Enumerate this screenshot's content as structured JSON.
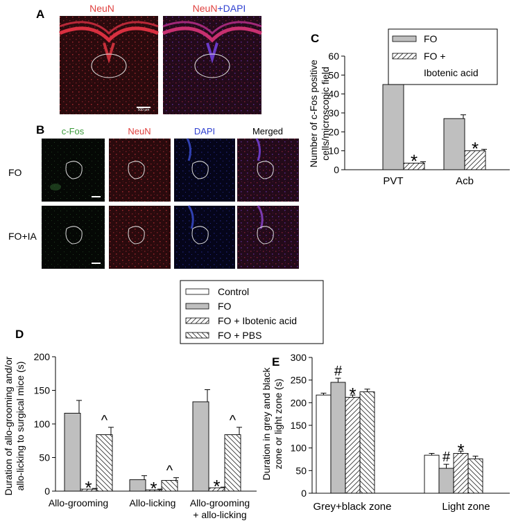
{
  "panel_a": {
    "letter": "A",
    "label_neun": "NeuN",
    "label_neun2": "NeuN",
    "label_plus": "+",
    "label_dapi": "DAPI",
    "scalebar_text": "500 μm"
  },
  "panel_b": {
    "letter": "B",
    "columns": [
      "c-Fos",
      "NeuN",
      "DAPI",
      "Merged"
    ],
    "rows": [
      "FO",
      "FO+IA"
    ]
  },
  "panel_c": {
    "letter": "C",
    "ylabel": [
      "Number of c-Fos positive",
      "cells/microscopic field"
    ],
    "legend": [
      "FO",
      "FO +",
      "Ibotenic acid"
    ],
    "star": "*"
  },
  "panel_d": {
    "letter": "D",
    "ylabel": [
      "Duration of allo-grooming and/or",
      "allo-licking to surgical mice (s)"
    ],
    "legend": [
      "Control",
      "FO",
      "FO + Ibotenic acid",
      "FO + PBS"
    ],
    "star": "*",
    "caret": "^",
    "category_lines": [
      [
        "Allo-grooming"
      ],
      [
        "Allo-licking"
      ],
      [
        "Allo-grooming",
        "+ allo-licking"
      ]
    ]
  },
  "panel_e": {
    "letter": "E",
    "ylabel": [
      "Duration in grey and black",
      "zone or light zone (s)"
    ],
    "star": "*",
    "hash": "#",
    "categories": [
      "Grey+black zone",
      "Light zone"
    ]
  },
  "colors": {
    "red": "#e0403e",
    "blue": "#2e3fd0",
    "green": "#3a9a3a",
    "grey_bar": "#bfbfbf"
  },
  "chart_data": [
    {
      "panel": "C",
      "type": "bar",
      "categories": [
        "PVT",
        "Acb"
      ],
      "series": [
        {
          "name": "FO",
          "values": [
            45,
            27
          ],
          "errors": [
            3,
            2
          ],
          "fill": "grey"
        },
        {
          "name": "FO + Ibotenic acid",
          "values": [
            3.5,
            10
          ],
          "errors": [
            0.7,
            0.8
          ],
          "fill": "hatch"
        }
      ],
      "ylim": [
        0,
        60
      ],
      "yticks": [
        0,
        10,
        20,
        30,
        40,
        50,
        60
      ],
      "significance": [
        {
          "series": 1,
          "category": 0,
          "mark": "*"
        },
        {
          "series": 1,
          "category": 1,
          "mark": "*"
        }
      ],
      "legend_position": "top-right"
    },
    {
      "panel": "D",
      "type": "bar",
      "categories": [
        "Allo-grooming",
        "Allo-licking",
        "Allo-grooming + allo-licking"
      ],
      "series": [
        {
          "name": "Control",
          "values": [
            0,
            0,
            0
          ],
          "errors": [
            0,
            0,
            0
          ],
          "fill": "white"
        },
        {
          "name": "FO",
          "values": [
            116,
            17,
            133
          ],
          "errors": [
            19,
            6,
            18
          ],
          "fill": "grey"
        },
        {
          "name": "FO + Ibotenic acid",
          "values": [
            3,
            2,
            5
          ],
          "errors": [
            1,
            1,
            1
          ],
          "fill": "hatch"
        },
        {
          "name": "FO + PBS",
          "values": [
            84,
            16,
            84
          ],
          "errors": [
            11,
            4,
            11
          ],
          "fill": "backhatch"
        }
      ],
      "ylim": [
        0,
        200
      ],
      "yticks": [
        0,
        50,
        100,
        150,
        200
      ],
      "significance": [
        {
          "series": 2,
          "category": 0,
          "mark": "*"
        },
        {
          "series": 3,
          "category": 0,
          "mark": "^"
        },
        {
          "series": 2,
          "category": 1,
          "mark": "*"
        },
        {
          "series": 3,
          "category": 1,
          "mark": "^"
        },
        {
          "series": 2,
          "category": 2,
          "mark": "*"
        },
        {
          "series": 3,
          "category": 2,
          "mark": "^"
        }
      ],
      "legend_position": "top-center"
    },
    {
      "panel": "E",
      "type": "bar",
      "categories": [
        "Grey+black zone",
        "Light zone"
      ],
      "series": [
        {
          "name": "Control",
          "values": [
            217,
            84
          ],
          "errors": [
            4,
            4
          ],
          "fill": "white"
        },
        {
          "name": "FO",
          "values": [
            245,
            55
          ],
          "errors": [
            9,
            9
          ],
          "fill": "grey"
        },
        {
          "name": "FO + Ibotenic acid",
          "values": [
            212,
            88
          ],
          "errors": [
            5,
            5
          ],
          "fill": "hatch"
        },
        {
          "name": "FO + PBS",
          "values": [
            224,
            76
          ],
          "errors": [
            6,
            6
          ],
          "fill": "backhatch"
        }
      ],
      "ylim": [
        0,
        300
      ],
      "yticks": [
        0,
        50,
        100,
        150,
        200,
        250,
        300
      ],
      "significance": [
        {
          "series": 1,
          "category": 0,
          "mark": "#"
        },
        {
          "series": 2,
          "category": 0,
          "mark": "*"
        },
        {
          "series": 1,
          "category": 1,
          "mark": "#"
        },
        {
          "series": 2,
          "category": 1,
          "mark": "*"
        }
      ]
    }
  ]
}
